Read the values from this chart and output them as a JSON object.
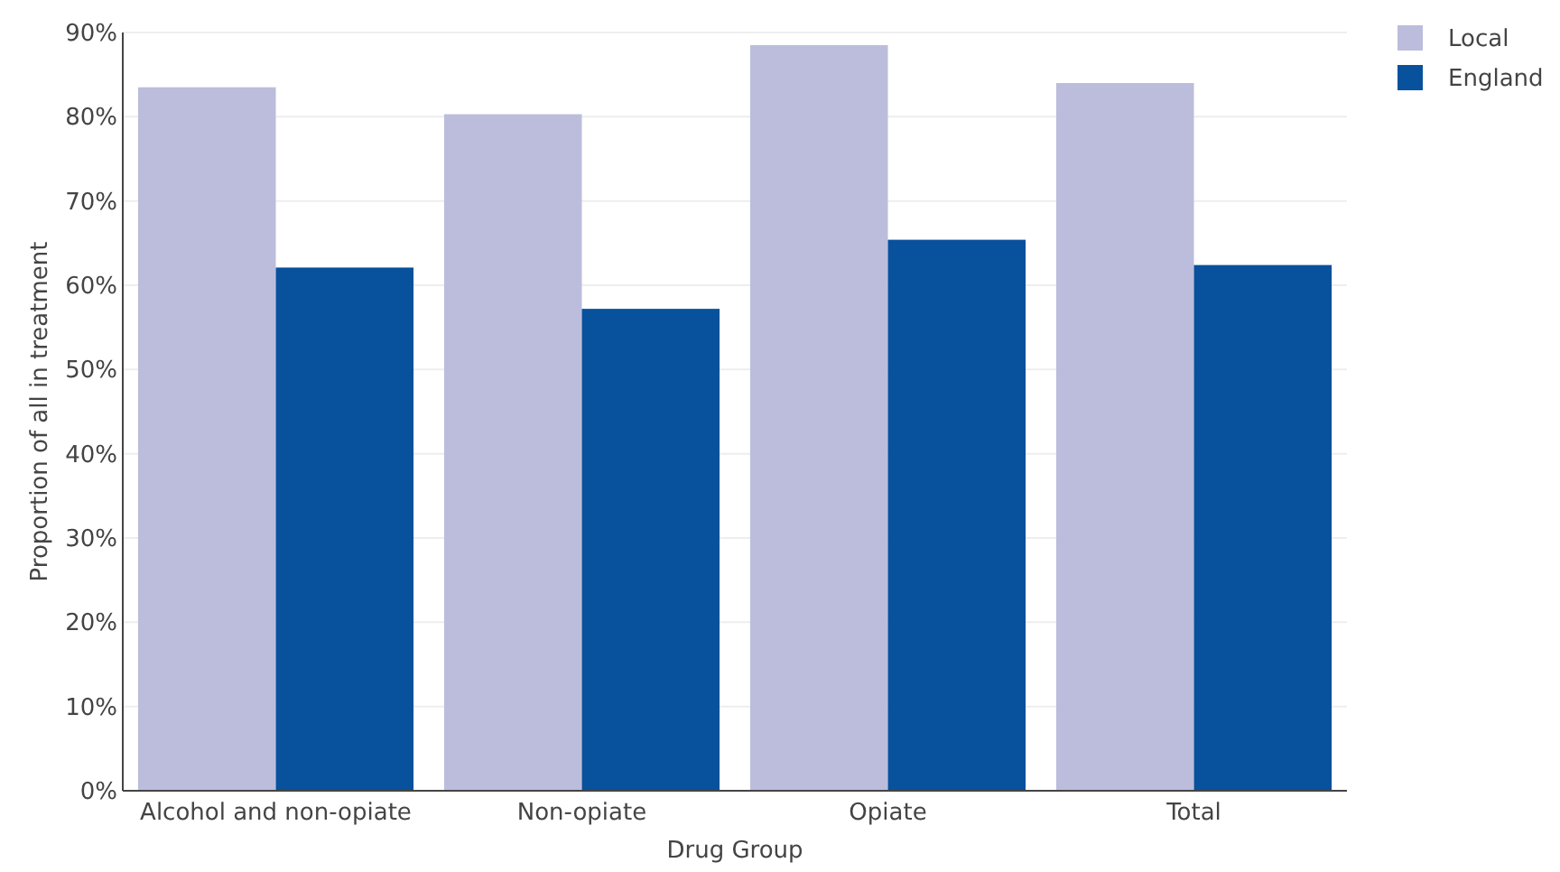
{
  "chart_data": {
    "type": "bar",
    "xlabel": "Drug Group",
    "ylabel": "Proportion of all in treatment",
    "categories": [
      "Alcohol and non-opiate",
      "Non-opiate",
      "Opiate",
      "Total"
    ],
    "series": [
      {
        "name": "Local",
        "color": "#bcbddc",
        "values": [
          83.5,
          80.3,
          88.5,
          84.0
        ]
      },
      {
        "name": "England",
        "color": "#08519c",
        "values": [
          62.1,
          57.2,
          65.4,
          62.4
        ]
      }
    ],
    "ylim": [
      0,
      90
    ],
    "yticks": [
      {
        "value": 0,
        "label": "0%"
      },
      {
        "value": 10,
        "label": "10%"
      },
      {
        "value": 20,
        "label": "20%"
      },
      {
        "value": 30,
        "label": "30%"
      },
      {
        "value": 40,
        "label": "40%"
      },
      {
        "value": 50,
        "label": "50%"
      },
      {
        "value": 60,
        "label": "60%"
      },
      {
        "value": 70,
        "label": "70%"
      },
      {
        "value": 80,
        "label": "80%"
      },
      {
        "value": 90,
        "label": "90%"
      }
    ],
    "grid": "y",
    "legend": "top right"
  }
}
